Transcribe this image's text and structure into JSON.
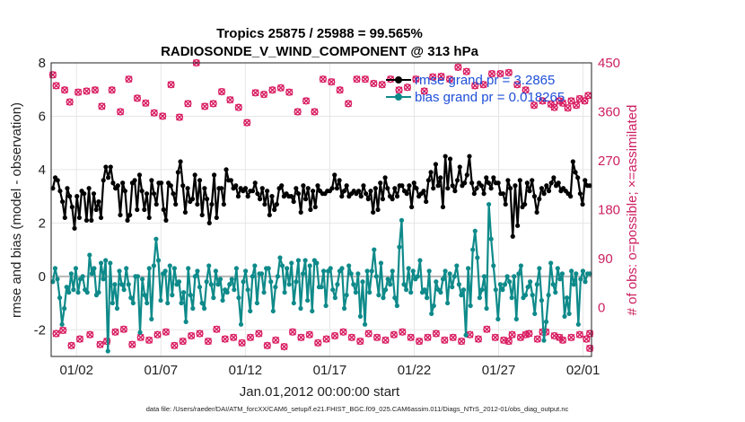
{
  "chart_data": {
    "type": "line",
    "title_line1": "Tropics 25875 / 25988 = 99.565%",
    "title_line2": "RADIOSONDE_V_WIND_COMPONENT @ 313 hPa",
    "xlabel": "Jan.01,2012 00:00:00 start",
    "ylabel_left": "rmse and bias (model - observation)",
    "ylabel_right": "# of obs: o=possible; ×=assimilated",
    "footer": "data file: /Users/raeder/DAI/ATM_forcXX/CAM6_setup/f.e21.FHIST_BGC.f09_025.CAM6assim.011/Diags_NTrS_2012-01/obs_diag_output.nc",
    "x_range": [
      0.5,
      32.5
    ],
    "xtick_days": [
      2,
      7,
      12,
      17,
      22,
      27,
      32
    ],
    "xtick_labels": [
      "01/02",
      "01/07",
      "01/12",
      "01/17",
      "01/22",
      "01/27",
      "02/01"
    ],
    "ylim_left": [
      -3,
      8
    ],
    "yticks_left": [
      "-2",
      "0",
      "2",
      "4",
      "6",
      "8"
    ],
    "ylim_right": [
      -90,
      450
    ],
    "yticks_right": [
      "0",
      "90",
      "180",
      "270",
      "360",
      "450"
    ],
    "zero_line": 0,
    "legend": {
      "rmse_label": "rmse grand pr = 3.2865",
      "bias_label": "bias grand pr = 0.018265"
    },
    "series_colors": {
      "rmse": "#000000",
      "bias": "#0f8a8a",
      "obs": "#d81b60"
    },
    "rmse_values": [
      3.3,
      3.7,
      3.6,
      3.2,
      2.8,
      2.2,
      3.3,
      3.0,
      2.6,
      1.8,
      3.0,
      2.2,
      3.2,
      3.1,
      2.1,
      3.3,
      2.1,
      3.1,
      2.5,
      2.8,
      2.2,
      3.6,
      4.1,
      3.7,
      4.1,
      3.5,
      3.3,
      3.4,
      2.3,
      3.5,
      3.2,
      2.1,
      2.3,
      3.5,
      3.6,
      2.5,
      3.8,
      3.2,
      2.5,
      3.1,
      2.2,
      3.6,
      3.1,
      2.7,
      3.5,
      3.5,
      2.5,
      2.1,
      3.5,
      3.4,
      3.1,
      2.7,
      3.9,
      4.3,
      3.4,
      2.4,
      3.3,
      2.8,
      2.9,
      3.8,
      2.7,
      3.6,
      2.3,
      3.3,
      2.9,
      2.0,
      2.7,
      3.8,
      2.2,
      3.3,
      3.3,
      2.7,
      4.0,
      3.6,
      3.6,
      3.3,
      3.4,
      3.0,
      3.3,
      3.2,
      3.3,
      3.0,
      3.2,
      3.2,
      3.5,
      3.1,
      2.9,
      3.3,
      2.7,
      3.2,
      2.3,
      3.0,
      2.5,
      2.7,
      3.3,
      3.4,
      3.0,
      3.1,
      3.0,
      3.0,
      2.8,
      3.3,
      3.1,
      2.4,
      3.4,
      2.9,
      3.3,
      2.5,
      3.2,
      2.6,
      3.4,
      3.2,
      3.1,
      3.1,
      3.2,
      3.2,
      3.3,
      3.8,
      3.3,
      3.6,
      3.0,
      3.2,
      3.4,
      3.0,
      3.1,
      3.2,
      3.1,
      3.2,
      3.0,
      3.4,
      3.1,
      2.9,
      3.2,
      2.4,
      3.3,
      2.5,
      3.5,
      2.9,
      3.7,
      3.3,
      3.0,
      2.9,
      3.3,
      3.0,
      3.4,
      3.4,
      3.2,
      3.1,
      3.4,
      2.6,
      3.5,
      3.3,
      3.0,
      3.1,
      3.2,
      2.8,
      3.6,
      3.9,
      3.3,
      4.2,
      3.4,
      3.7,
      2.6,
      4.5,
      3.3,
      4.4,
      3.4,
      3.2,
      3.6,
      4.1,
      3.4,
      3.5,
      3.8,
      4.5,
      3.5,
      3.1,
      3.3,
      3.5,
      3.4,
      3.1,
      3.7,
      3.5,
      3.3,
      3.7,
      3.5,
      3.5,
      3.1,
      3.1,
      2.7,
      3.6,
      3.3,
      1.5,
      3.4,
      1.9,
      3.6,
      2.6,
      2.7,
      3.5,
      3.2,
      3.6,
      3.0,
      2.4,
      2.9,
      3.3,
      3.1,
      3.4,
      3.2,
      3.5,
      3.7,
      3.4,
      3.5,
      3.2,
      3.3,
      3.2,
      3.1,
      3.0,
      4.3,
      3.9,
      3.7,
      3.1,
      2.7,
      3.6,
      3.4,
      3.4
    ],
    "bias_values": [
      -0.2,
      0.3,
      -0.1,
      -0.8,
      -1.8,
      -1.2,
      -0.4,
      -0.6,
      0.1,
      -0.5,
      0.3,
      -0.6,
      -0.1,
      0.0,
      -0.5,
      -0.6,
      0.8,
      0.1,
      0.3,
      -0.7,
      -0.6,
      0.5,
      -0.1,
      0.6,
      -2.8,
      0.5,
      -1.0,
      -0.3,
      -1.2,
      0.2,
      -0.3,
      -0.5,
      0.3,
      -0.3,
      -0.8,
      -1.0,
      0.0,
      0.0,
      -2.1,
      -0.1,
      -0.7,
      -1.0,
      0.3,
      -1.6,
      0.4,
      1.4,
      0.6,
      -0.9,
      0.1,
      0.2,
      -1.0,
      0.4,
      -0.7,
      0.3,
      -0.3,
      -0.2,
      -1.0,
      -0.6,
      -1.7,
      0.3,
      -0.7,
      -1.2,
      0.0,
      0.2,
      -0.4,
      -1.0,
      -1.2,
      -0.2,
      0.4,
      -0.3,
      -0.8,
      0.2,
      -0.3,
      -0.1,
      -0.9,
      -0.5,
      -0.6,
      -0.3,
      -0.1,
      -0.5,
      0.3,
      -0.8,
      -1.8,
      -0.2,
      0.2,
      -0.5,
      -1.3,
      0.0,
      0.4,
      -1.0,
      0.1,
      0.1,
      -0.6,
      0.3,
      0.3,
      -0.2,
      -1.3,
      -0.4,
      0.0,
      0.7,
      0.4,
      -0.6,
      0.3,
      -0.3,
      0.5,
      -1.0,
      -0.2,
      0.6,
      -1.2,
      0.1,
      0.6,
      -0.9,
      0.4,
      -1.3,
      0.6,
      0.5,
      -0.4,
      -0.4,
      0.2,
      -1.1,
      0.2,
      0.3,
      -0.5,
      -0.8,
      -0.3,
      0.2,
      0.3,
      -1.2,
      -0.7,
      0.4,
      0.1,
      -0.3,
      -0.6,
      0.1,
      -1.5,
      -0.2,
      -1.8,
      0.2,
      -0.6,
      0.2,
      1.0,
      0.0,
      -0.7,
      0.5,
      -0.8,
      -0.5,
      -0.1,
      -0.3,
      0.2,
      -0.8,
      -1.1,
      1.1,
      2.1,
      -0.3,
      -0.5,
      0.3,
      -0.6,
      0.2,
      -0.1,
      0.0,
      0.6,
      -0.6,
      -0.5,
      -0.8,
      0.2,
      -1.4,
      -1.1,
      -0.2,
      -0.5,
      -0.6,
      -0.1,
      0.2,
      -1.0,
      0.1,
      -0.4,
      0.0,
      0.4,
      -0.3,
      -0.7,
      -0.5,
      -2.2,
      0.3,
      -1.1,
      1.0,
      1.7,
      0.7,
      -0.8,
      -0.5,
      0.0,
      -1.2,
      2.7,
      1.4,
      0.4,
      -0.5,
      -1.6,
      -0.3,
      -0.5,
      -0.3,
      0.0,
      -0.2,
      -0.8,
      0.0,
      -1.6,
      0.1,
      0.4,
      -0.8,
      -0.7,
      -0.4,
      -0.2,
      -0.7,
      -1.4,
      -0.3,
      0.3,
      -0.9,
      -2.4,
      -1.7,
      -0.7,
      0.5,
      -0.3,
      -0.6,
      0.3,
      -0.1,
      0.1,
      -1.5,
      -0.8,
      -1.4,
      0.2,
      -0.3,
      0.1,
      -1.8,
      -0.1,
      0.2,
      -0.2,
      0.1,
      0.1
    ],
    "obs_possible": [
      428,
      408,
      400,
      378,
      396,
      398,
      400,
      370,
      400,
      360,
      420,
      385,
      376,
      358,
      352,
      410,
      350,
      375,
      450,
      370,
      375,
      397,
      382,
      368,
      340,
      395,
      392,
      400,
      404,
      396,
      360,
      380,
      360,
      420,
      415,
      400,
      375,
      420,
      420,
      412,
      410,
      420,
      400,
      405,
      420,
      398,
      424,
      425,
      420,
      442,
      434,
      408,
      410,
      430,
      430,
      432,
      410,
      400,
      372,
      380,
      374,
      380,
      367,
      372,
      380,
      390,
      384,
      380,
      376,
      368
    ],
    "obs_assimilated": [
      426,
      406,
      398,
      376,
      394,
      396,
      398,
      368,
      398,
      358,
      418,
      383,
      374,
      356,
      350,
      408,
      348,
      373,
      448,
      368,
      373,
      395,
      380,
      366,
      338,
      393,
      390,
      398,
      402,
      394,
      358,
      378,
      358,
      418,
      413,
      398,
      373,
      418,
      418,
      410,
      408,
      418,
      398,
      403,
      418,
      396,
      422,
      423,
      418,
      440,
      432,
      406,
      408,
      428,
      428,
      430,
      408,
      398,
      370,
      378,
      372,
      378,
      365,
      370,
      378,
      388,
      382,
      378,
      374,
      366
    ],
    "obs_day_positions": [
      0.6,
      0.8,
      1.3,
      1.6,
      2.1,
      2.6,
      3.1,
      3.5,
      4.1,
      4.6,
      5.1,
      5.6,
      6.1,
      6.6,
      7.1,
      7.6,
      8.1,
      8.6,
      9.1,
      9.6,
      10.1,
      10.6,
      11.1,
      11.6,
      12.1,
      12.6,
      13.1,
      13.6,
      14.1,
      14.6,
      15.1,
      15.6,
      16.1,
      16.6,
      17.1,
      17.6,
      18.1,
      18.6,
      19.1,
      19.6,
      20.1,
      20.6,
      21.1,
      21.6,
      22.1,
      22.6,
      23.1,
      23.6,
      24.1,
      24.6,
      25.1,
      25.6,
      26.1,
      26.6,
      27.1,
      27.6,
      28.1,
      28.6,
      29.1,
      29.6,
      30.1,
      30.6,
      31.1,
      31.6,
      32.1,
      32.3,
      31.8,
      31.3,
      30.8,
      30.3
    ],
    "bottom_obs_values": [
      -48,
      -42,
      -70,
      -58,
      -50,
      -68,
      -62,
      -45,
      -40,
      -68,
      -55,
      -60,
      -50,
      -45,
      -70,
      -62,
      -52,
      -48,
      -62,
      -40,
      -58,
      -55,
      -65,
      -55,
      -48,
      -70,
      -60,
      -72,
      -45,
      -55,
      -50,
      -65,
      -58,
      -52,
      -45,
      -55,
      -62,
      -48,
      -55,
      -60,
      -50,
      -45,
      -55,
      -62,
      -55,
      -48,
      -60,
      -55,
      -62,
      -50,
      -58,
      -40,
      -55,
      -60,
      -50,
      -55,
      -48,
      -58,
      -45,
      -52,
      -60,
      -55,
      -50,
      -58,
      -48,
      -55,
      -45,
      -50,
      -62,
      -75
    ],
    "bottom_obs_days": [
      0.8,
      1.2,
      1.7,
      2.2,
      2.8,
      3.4,
      3.8,
      4.3,
      4.8,
      5.3,
      5.8,
      6.3,
      6.8,
      7.3,
      7.8,
      8.3,
      8.8,
      9.3,
      9.8,
      10.3,
      10.8,
      11.3,
      11.8,
      12.3,
      12.8,
      13.3,
      13.8,
      14.3,
      14.8,
      15.3,
      15.8,
      16.3,
      16.8,
      17.3,
      17.8,
      18.3,
      18.8,
      19.3,
      19.8,
      20.3,
      20.8,
      21.3,
      21.8,
      22.3,
      22.8,
      23.3,
      23.8,
      24.3,
      24.8,
      25.3,
      25.8,
      26.3,
      26.8,
      27.3,
      27.8,
      28.3,
      28.8,
      29.3,
      29.8,
      30.3,
      30.8,
      31.3,
      31.8,
      32.2,
      32.4,
      30.6,
      29.6,
      28.6,
      27.6,
      32.4
    ]
  }
}
